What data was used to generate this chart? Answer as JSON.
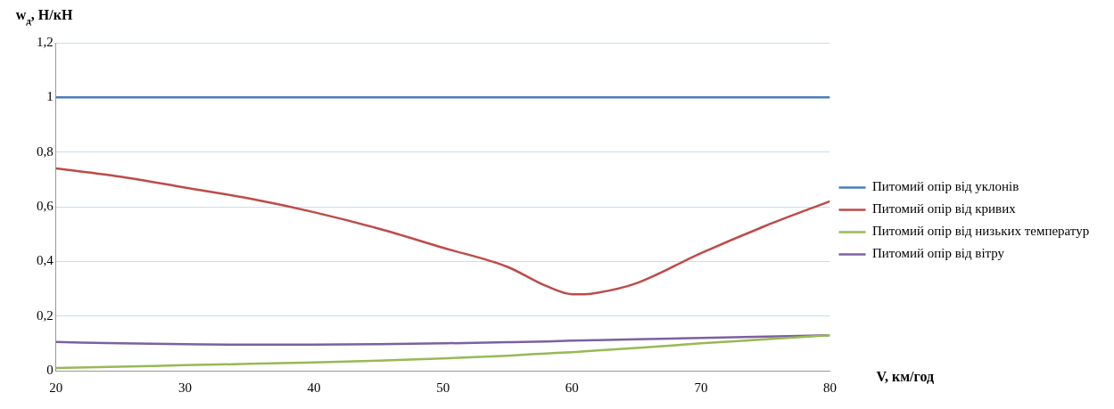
{
  "chart_data": {
    "type": "line",
    "xlabel": "V, км/год",
    "ylabel": "w$_{д}$, Н/кН",
    "x": [
      20,
      25,
      30,
      35,
      40,
      45,
      50,
      55,
      58,
      60,
      61,
      62,
      65,
      70,
      75,
      80
    ],
    "xlim": [
      20,
      80
    ],
    "xticks": [
      20,
      30,
      40,
      50,
      60,
      70,
      80
    ],
    "ylim": [
      0,
      1.2
    ],
    "yticks": [
      {
        "value": 0,
        "label": "0"
      },
      {
        "value": 0.2,
        "label": "0,2"
      },
      {
        "value": 0.4,
        "label": "0,4"
      },
      {
        "value": 0.6,
        "label": "0,6"
      },
      {
        "value": 0.8,
        "label": "0,8"
      },
      {
        "value": 1,
        "label": "1"
      },
      {
        "value": 1.2,
        "label": "1,2"
      }
    ],
    "grid": "y",
    "legend": "right",
    "marker": "none",
    "line_style": "solid",
    "series": [
      {
        "name": "Питомий опір від уклонів",
        "color": "#4a7ebb",
        "values": [
          1,
          1,
          1,
          1,
          1,
          1,
          1,
          1,
          1,
          1,
          1,
          1,
          1,
          1,
          1,
          1
        ]
      },
      {
        "name": "Питомий опір від кривих",
        "color": "#be4b48",
        "values": [
          0.74,
          0.71,
          0.67,
          0.63,
          0.58,
          0.52,
          0.45,
          0.38,
          0.31,
          0.28,
          0.28,
          0.285,
          0.32,
          0.43,
          0.53,
          0.62
        ]
      },
      {
        "name": "Питомий опір від низьких температур",
        "color": "#98b954",
        "values": [
          0.01,
          0.015,
          0.02,
          0.025,
          0.03,
          0.037,
          0.045,
          0.055,
          0.063,
          0.068,
          0.071,
          0.074,
          0.083,
          0.1,
          0.115,
          0.13
        ]
      },
      {
        "name": "Питомий опір від вітру",
        "color": "#7d60a0",
        "values": [
          0.105,
          0.1,
          0.097,
          0.095,
          0.095,
          0.097,
          0.1,
          0.104,
          0.107,
          0.11,
          0.111,
          0.112,
          0.115,
          0.12,
          0.125,
          0.13
        ]
      }
    ]
  }
}
